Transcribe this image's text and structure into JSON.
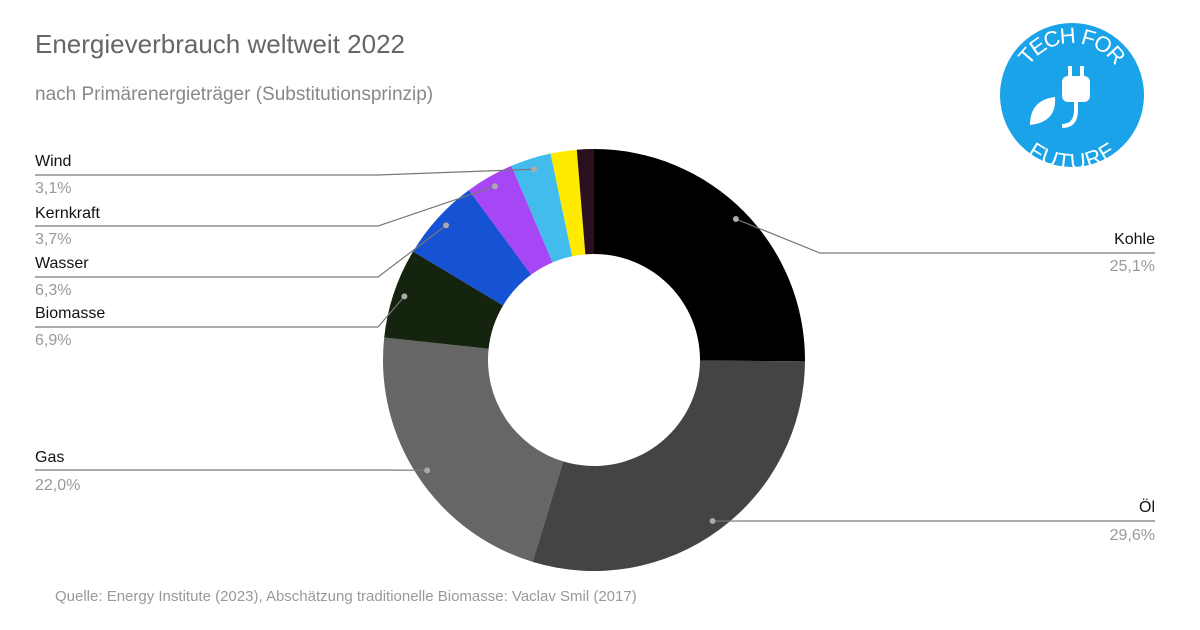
{
  "chart_data": {
    "type": "donut",
    "title": "Energieverbrauch weltweit 2022",
    "subtitle": "nach Primärenergieträger (Substitutionsprinzip)",
    "source": "Quelle: Energy Institute (2023), Abschätzung traditionelle Biomasse: Vaclav Smil (2017)",
    "categories": [
      "Kohle",
      "Öl",
      "Gas",
      "Biomasse",
      "Wasser",
      "Kernkraft",
      "Wind",
      null,
      null
    ],
    "values": [
      25.1,
      29.6,
      22.0,
      6.9,
      6.3,
      3.7,
      3.1,
      2.0,
      1.3
    ],
    "value_labels": [
      "25,1%",
      "29,6%",
      "22,0%",
      "6,9%",
      "6,3%",
      "3,7%",
      "3,1%",
      null,
      null
    ],
    "colors": [
      "#000000",
      "#444444",
      "#666666",
      "#14240e",
      "#1652d4",
      "#a646f5",
      "#42bcec",
      "#ffea00",
      "#2a0f1e"
    ]
  },
  "logo": {
    "top": "TECH FOR",
    "bottom": "FUTURE"
  }
}
